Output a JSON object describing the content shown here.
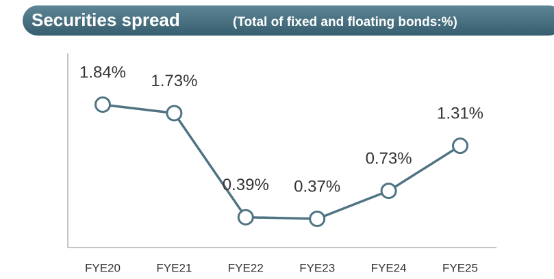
{
  "chart_data": {
    "type": "line",
    "title": "Securities spread",
    "subtitle": "(Total of fixed and floating bonds:%)",
    "categories": [
      "FYE20",
      "FYE21",
      "FYE22",
      "FYE23",
      "FYE24",
      "FYE25"
    ],
    "values": [
      1.84,
      1.73,
      0.39,
      0.37,
      0.73,
      1.31
    ],
    "value_labels": [
      "1.84%",
      "1.73%",
      "0.39%",
      "0.37%",
      "0.73%",
      "1.31%"
    ],
    "color": "#4f7383",
    "ylim": [
      0,
      2.5
    ]
  }
}
